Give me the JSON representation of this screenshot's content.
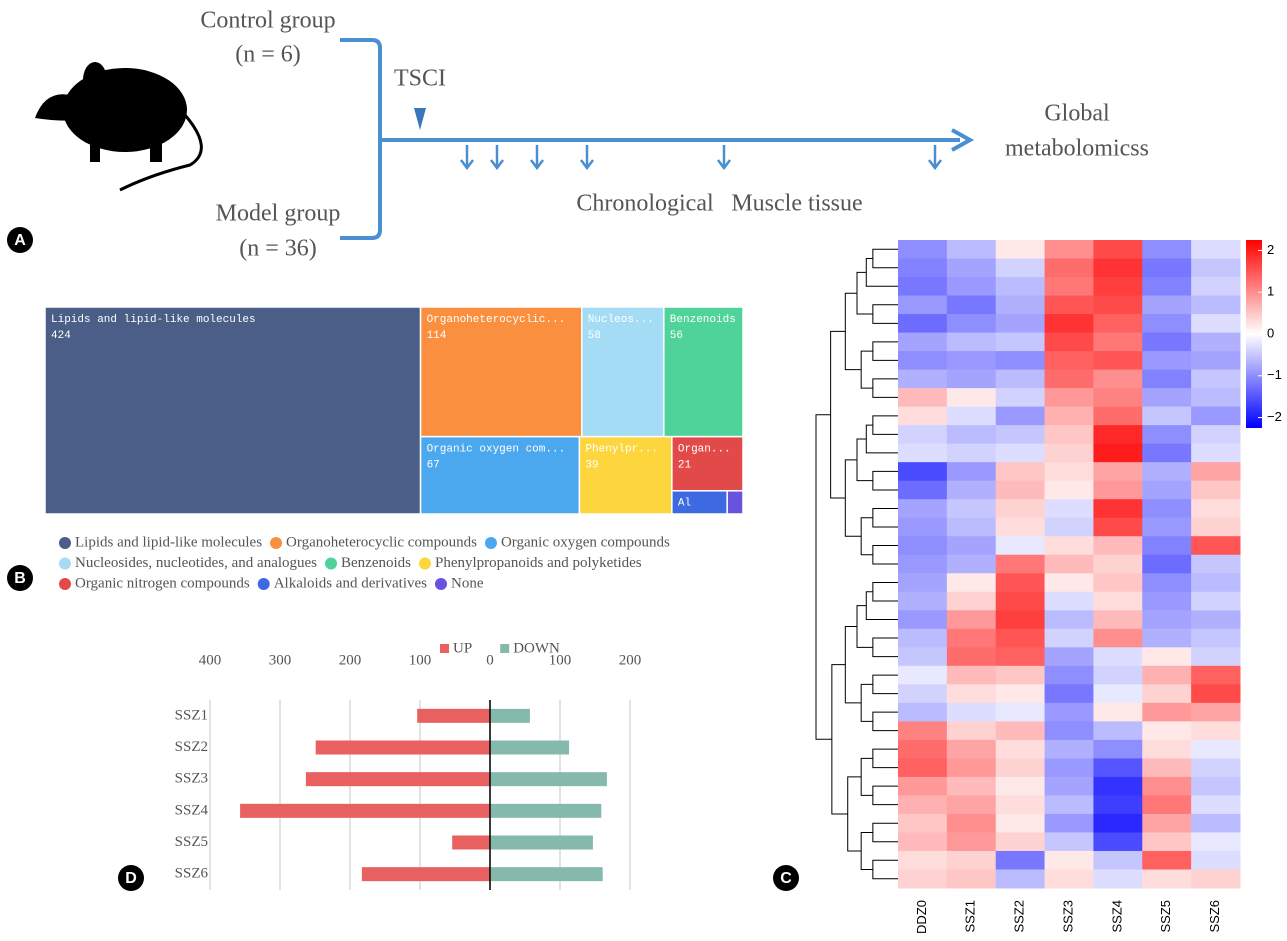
{
  "panel_labels": [
    "A",
    "B",
    "C",
    "D"
  ],
  "diagram": {
    "groups": [
      {
        "label": "Control group",
        "n": "(n = 6)"
      },
      {
        "label": "Model group",
        "n": "(n = 36)"
      }
    ],
    "event": "TSCI",
    "outcome": [
      "Global",
      "metabolomicss"
    ],
    "sampling": [
      "Chronological",
      "Muscle tissue"
    ]
  },
  "chart_data": [
    {
      "type": "treemap",
      "categories": [
        "Lipids and lipid-like molecules",
        "Organoheterocyclic compounds",
        "Organic oxygen compounds",
        "Nucleosides, nucleotides, and analogues",
        "Benzenoids",
        "Phenylpropanoids and polyketides",
        "Organic nitrogen compounds",
        "Alkaloids and derivatives",
        "None"
      ],
      "tile_labels": [
        "Lipids and lipid-like molecules",
        "Organoheterocyclic...",
        "Organic oxygen com...",
        "Nucleos...",
        "Benzenoids",
        "Phenylpr...",
        "Organ...",
        "Al",
        null
      ],
      "values": [
        424,
        114,
        67,
        58,
        56,
        39,
        21,
        7,
        2
      ],
      "colors": [
        "#4a5e87",
        "#f98f3f",
        "#4ca8ee",
        "#a5dcf5",
        "#4fd39b",
        "#fdd53d",
        "#e24a4a",
        "#3d6ae0",
        "#6a52e0"
      ]
    },
    {
      "type": "heatmap",
      "columns": [
        "DDZ0",
        "SSZ1",
        "SSZ2",
        "SSZ3",
        "SSZ4",
        "SSZ5",
        "SSZ6"
      ],
      "values": [
        [
          -1.0,
          -0.6,
          0.2,
          1.0,
          1.6,
          -1.0,
          -0.3
        ],
        [
          -1.1,
          -0.8,
          -0.4,
          1.3,
          1.8,
          -1.2,
          -0.5
        ],
        [
          -1.2,
          -0.9,
          -0.6,
          1.2,
          1.7,
          -1.1,
          -0.4
        ],
        [
          -0.9,
          -1.2,
          -0.7,
          1.5,
          1.6,
          -0.8,
          -0.6
        ],
        [
          -1.3,
          -1.0,
          -0.8,
          1.8,
          1.4,
          -1.0,
          -0.3
        ],
        [
          -0.8,
          -0.6,
          -0.5,
          1.6,
          1.2,
          -1.2,
          -0.7
        ],
        [
          -1.0,
          -0.9,
          -1.0,
          1.4,
          1.5,
          -0.9,
          -0.8
        ],
        [
          -0.7,
          -0.8,
          -0.6,
          1.3,
          1.0,
          -1.1,
          -0.5
        ],
        [
          0.6,
          0.2,
          -0.4,
          0.9,
          1.1,
          -0.8,
          -0.6
        ],
        [
          0.3,
          -0.3,
          -0.9,
          0.7,
          1.3,
          -0.5,
          -0.9
        ],
        [
          -0.4,
          -0.6,
          -0.5,
          0.5,
          1.9,
          -1.0,
          -0.4
        ],
        [
          -0.3,
          -0.4,
          -0.3,
          0.4,
          2.0,
          -1.2,
          -0.3
        ],
        [
          -1.6,
          -0.9,
          0.5,
          0.3,
          0.8,
          -0.7,
          0.8
        ],
        [
          -1.3,
          -0.7,
          0.6,
          0.2,
          0.9,
          -0.8,
          0.5
        ],
        [
          -0.8,
          -0.5,
          0.4,
          -0.3,
          1.8,
          -1.0,
          0.3
        ],
        [
          -0.9,
          -0.6,
          0.3,
          -0.4,
          1.6,
          -0.9,
          0.4
        ],
        [
          -1.0,
          -0.8,
          -0.2,
          0.3,
          0.6,
          -1.1,
          1.5
        ],
        [
          -0.9,
          -0.7,
          1.2,
          0.6,
          0.4,
          -1.3,
          -0.5
        ],
        [
          -0.8,
          0.2,
          1.5,
          0.2,
          0.5,
          -1.0,
          -0.6
        ],
        [
          -0.7,
          0.4,
          1.6,
          -0.3,
          0.3,
          -0.9,
          -0.4
        ],
        [
          -0.9,
          0.9,
          1.7,
          -0.6,
          0.6,
          -0.8,
          -0.7
        ],
        [
          -0.6,
          1.2,
          1.5,
          -0.4,
          1.0,
          -0.7,
          -0.5
        ],
        [
          -0.5,
          1.3,
          1.4,
          -0.8,
          -0.3,
          0.2,
          -0.4
        ],
        [
          -0.2,
          0.6,
          0.5,
          -1.0,
          -0.4,
          0.7,
          1.4
        ],
        [
          -0.4,
          0.3,
          0.2,
          -1.2,
          -0.2,
          0.4,
          1.6
        ],
        [
          -0.6,
          -0.3,
          -0.2,
          -0.9,
          0.2,
          0.9,
          0.8
        ],
        [
          1.1,
          0.4,
          0.6,
          -1.0,
          -0.6,
          0.2,
          0.3
        ],
        [
          1.3,
          0.8,
          0.3,
          -0.7,
          -1.0,
          0.3,
          -0.2
        ],
        [
          1.4,
          0.9,
          0.4,
          -0.9,
          -1.5,
          0.6,
          -0.4
        ],
        [
          0.9,
          0.6,
          0.2,
          -0.8,
          -1.8,
          1.0,
          -0.5
        ],
        [
          0.7,
          0.8,
          0.3,
          -0.6,
          -1.7,
          1.2,
          -0.3
        ],
        [
          0.5,
          1.0,
          0.2,
          -0.9,
          -1.9,
          0.8,
          -0.6
        ],
        [
          0.6,
          0.9,
          0.4,
          -0.5,
          -1.6,
          0.5,
          -0.2
        ],
        [
          0.3,
          0.4,
          -1.2,
          0.2,
          -0.5,
          1.4,
          -0.3
        ],
        [
          0.4,
          0.5,
          -0.6,
          0.3,
          -0.3,
          0.3,
          0.4
        ]
      ],
      "clim": [
        -2.25,
        2.25
      ],
      "cticks": [
        2,
        1,
        0,
        {
          "value": -1,
          "label": "−1"
        },
        {
          "value": -2,
          "label": "−2"
        }
      ],
      "low_color": "#0000ff",
      "mid_color": "#ffffff",
      "high_color": "#ff0000"
    },
    {
      "type": "bar",
      "orientation": "horizontal",
      "categories": [
        "SSZ1",
        "SSZ2",
        "SSZ3",
        "SSZ4",
        "SSZ5",
        "SSZ6"
      ],
      "series": [
        {
          "name": "UP",
          "color": "#e8605f",
          "values": [
            -104,
            -249,
            -263,
            -357,
            -54,
            -183
          ]
        },
        {
          "name": "DOWN",
          "color": "#85b9ab",
          "values": [
            57,
            113,
            167,
            159,
            147,
            161
          ]
        }
      ],
      "xlim": [
        -400,
        200
      ],
      "xticks": [
        {
          "value": -400,
          "label": "400"
        },
        {
          "value": -300,
          "label": "300"
        },
        {
          "value": -200,
          "label": "200"
        },
        {
          "value": -100,
          "label": "100"
        },
        0,
        100,
        200
      ],
      "grid": true
    }
  ]
}
